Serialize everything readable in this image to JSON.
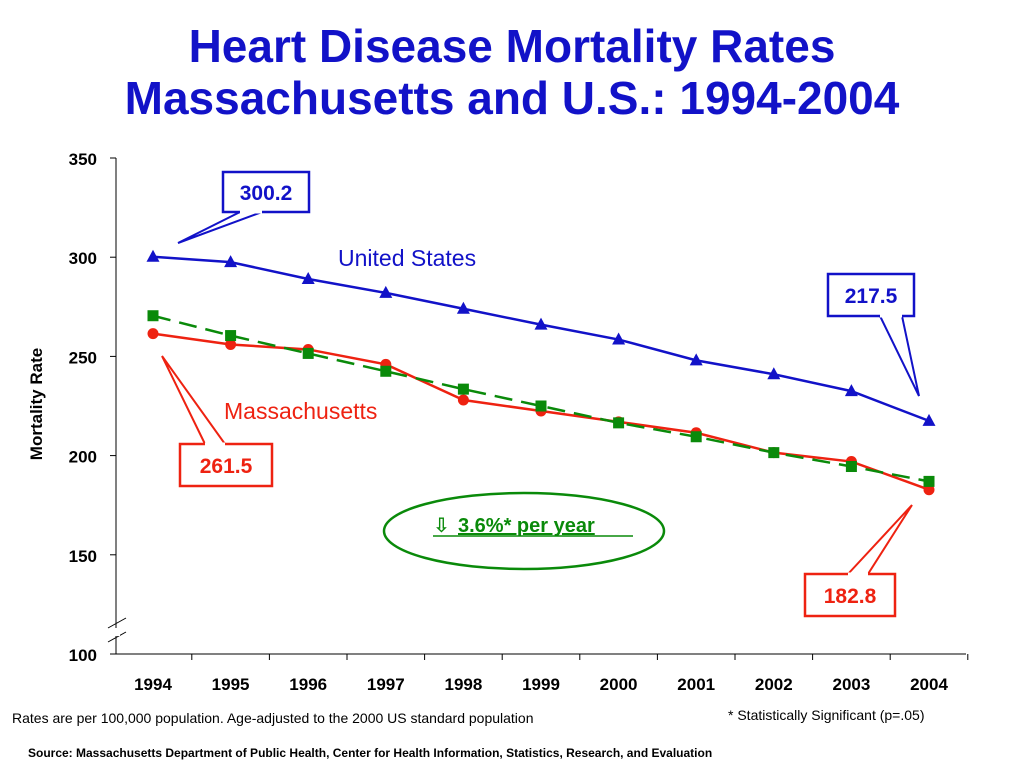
{
  "title_line1": "Heart Disease Mortality Rates",
  "title_line2": "Massachusetts and U.S.: 1994-2004",
  "footnote_left": "Rates are per 100,000 population.  Age-adjusted to the 2000 US standard population",
  "footnote_right": "* Statistically Significant  (p=.05)",
  "source": "Source:  Massachusetts Department of Public Health, Center for Health Information, Statistics, Research, and Evaluation",
  "colors": {
    "title": "#1212c8",
    "us": "#1212c8",
    "ma": "#ee2211",
    "trend": "#0a8a0a"
  },
  "chart_data": {
    "type": "line",
    "ylabel": "Mortality Rate",
    "xlabel": "",
    "ylim": [
      100,
      350
    ],
    "axis_break": true,
    "yticks": [
      "350",
      "300",
      "250",
      "200",
      "150",
      "100"
    ],
    "categories": [
      "1994",
      "1995",
      "1996",
      "1997",
      "1998",
      "1999",
      "2000",
      "2001",
      "2002",
      "2003",
      "2004"
    ],
    "series": [
      {
        "name": "United States",
        "marker": "triangle",
        "color": "#1212c8",
        "dashed": false,
        "values": [
          300.2,
          297.5,
          289,
          282,
          274,
          266,
          258.5,
          248,
          241,
          232.5,
          217.5
        ]
      },
      {
        "name": "Massachusetts",
        "marker": "circle",
        "color": "#ee2211",
        "dashed": false,
        "values": [
          261.5,
          256,
          253.5,
          246,
          228,
          222.5,
          217,
          211.5,
          201.5,
          197,
          182.8
        ]
      },
      {
        "name": "",
        "marker": "square",
        "color": "#0a8a0a",
        "dashed": true,
        "values": [
          270.5,
          260.5,
          251.5,
          242.5,
          233.5,
          225,
          216.5,
          209.5,
          201.5,
          194.5,
          187
        ]
      }
    ],
    "annotations": [
      {
        "text": "300.2",
        "color": "#1212c8"
      },
      {
        "text": "217.5",
        "color": "#1212c8"
      },
      {
        "text": "261.5",
        "color": "#ee2211"
      },
      {
        "text": "182.8",
        "color": "#ee2211"
      }
    ],
    "callout": {
      "arrow": "⇩",
      "text": "3.6%* per year",
      "color": "#0a8a0a"
    }
  }
}
